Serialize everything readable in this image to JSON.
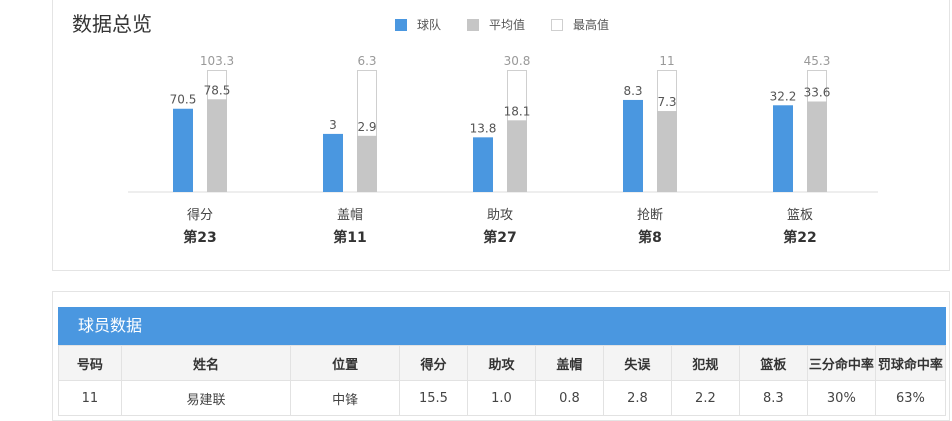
{
  "overview": {
    "title": "数据总览",
    "legend": [
      {
        "label": "球队",
        "color": "#4a97e0"
      },
      {
        "label": "平均值",
        "color": "#c6c6c6"
      },
      {
        "label": "最高值",
        "color": "#ffffff"
      }
    ]
  },
  "chart_data": {
    "type": "bar",
    "categories": [
      "得分",
      "盖帽",
      "助攻",
      "抢断",
      "篮板"
    ],
    "ranks": [
      "第23",
      "第11",
      "第27",
      "第8",
      "第22"
    ],
    "series": [
      {
        "name": "球队",
        "values": [
          70.5,
          3,
          13.8,
          8.3,
          32.2
        ],
        "color": "#4a97e0"
      },
      {
        "name": "平均值",
        "values": [
          78.5,
          2.9,
          18.1,
          7.3,
          33.6
        ],
        "color": "#c6c6c6"
      },
      {
        "name": "最高值",
        "values": [
          103.3,
          6.3,
          30.8,
          11,
          45.3
        ],
        "color": "#ffffff"
      }
    ],
    "title": "数据总览",
    "grid": false,
    "legend_position": "top"
  },
  "player_table": {
    "title": "球员数据",
    "headers": [
      "号码",
      "姓名",
      "位置",
      "得分",
      "助攻",
      "盖帽",
      "失误",
      "犯规",
      "篮板",
      "三分命中率",
      "罚球命中率"
    ],
    "rows": [
      [
        "11",
        "易建联",
        "中锋",
        "15.5",
        "1.0",
        "0.8",
        "2.8",
        "2.2",
        "8.3",
        "30%",
        "63%"
      ]
    ]
  }
}
